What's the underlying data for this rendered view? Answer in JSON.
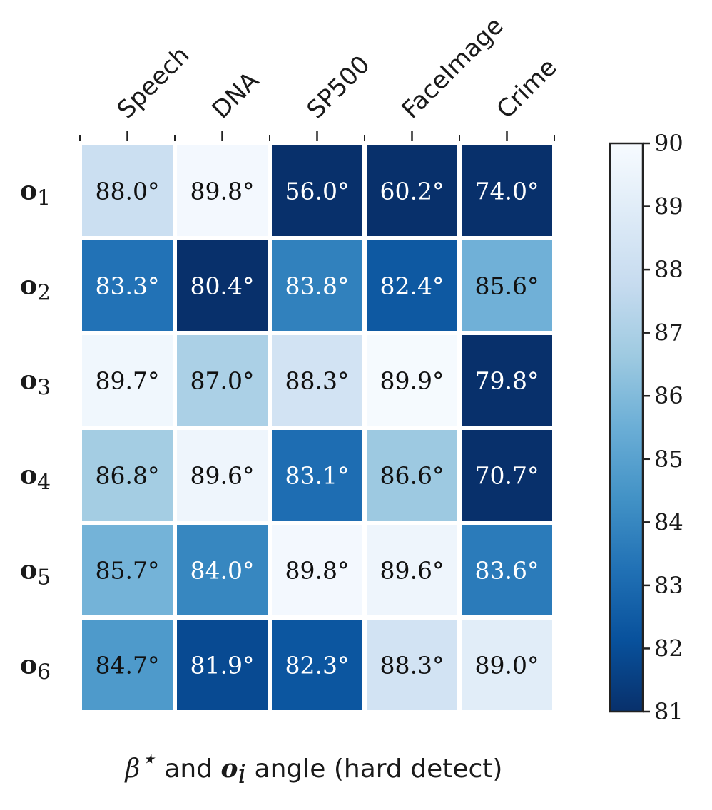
{
  "chart_data": {
    "type": "heatmap",
    "columns": [
      "Speech",
      "DNA",
      "SP500",
      "FaceImage",
      "Crime"
    ],
    "rows": [
      {
        "name": "o",
        "sub": "1"
      },
      {
        "name": "o",
        "sub": "2"
      },
      {
        "name": "o",
        "sub": "3"
      },
      {
        "name": "o",
        "sub": "4"
      },
      {
        "name": "o",
        "sub": "5"
      },
      {
        "name": "o",
        "sub": "6"
      }
    ],
    "values": [
      [
        88.0,
        89.8,
        56.0,
        60.2,
        74.0
      ],
      [
        83.3,
        80.4,
        83.8,
        82.4,
        85.6
      ],
      [
        89.7,
        87.0,
        88.3,
        89.9,
        79.8
      ],
      [
        86.8,
        89.6,
        83.1,
        86.6,
        70.7
      ],
      [
        85.7,
        84.0,
        89.8,
        89.6,
        83.6
      ],
      [
        84.7,
        81.9,
        82.3,
        88.3,
        89.0
      ]
    ],
    "labels": [
      [
        "88.0°",
        "89.8°",
        "56.0°",
        "60.2°",
        "74.0°"
      ],
      [
        "83.3°",
        "80.4°",
        "83.8°",
        "82.4°",
        "85.6°"
      ],
      [
        "89.7°",
        "87.0°",
        "88.3°",
        "89.9°",
        "79.8°"
      ],
      [
        "86.8°",
        "89.6°",
        "83.1°",
        "86.6°",
        "70.7°"
      ],
      [
        "85.7°",
        "84.0°",
        "89.8°",
        "89.6°",
        "83.6°"
      ],
      [
        "84.7°",
        "81.9°",
        "82.3°",
        "88.3°",
        "89.0°"
      ]
    ],
    "colorbar": {
      "min": 81,
      "max": 90,
      "ticks": [
        "90",
        "89",
        "88",
        "87",
        "86",
        "85",
        "84",
        "83",
        "82",
        "81"
      ],
      "colormap": "Blues_r",
      "colors": [
        "#08306b",
        "#08519c",
        "#2171b5",
        "#4292c6",
        "#6baed6",
        "#9ecae1",
        "#c6dbef",
        "#deebf7",
        "#f7fbff"
      ]
    },
    "caption": {
      "beta": "β",
      "star": "⋆",
      "text1": " and ",
      "o": "o",
      "sub": "i",
      "text2": " angle (hard detect)"
    }
  }
}
